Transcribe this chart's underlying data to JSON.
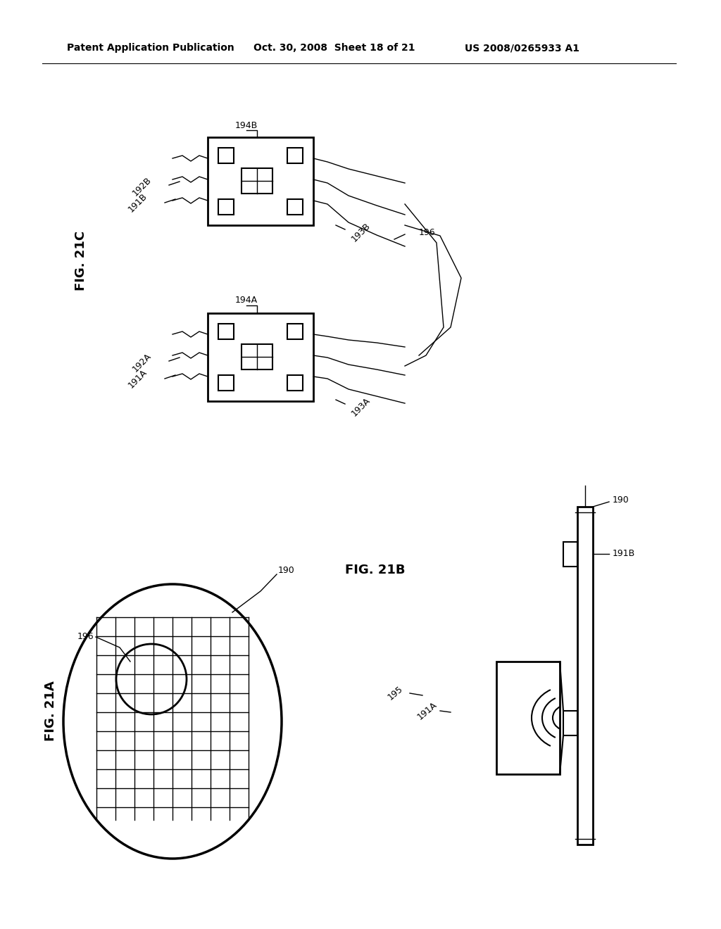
{
  "bg_color": "#ffffff",
  "header_left": "Patent Application Publication",
  "header_mid": "Oct. 30, 2008  Sheet 18 of 21",
  "header_right": "US 2008/0265933 A1"
}
